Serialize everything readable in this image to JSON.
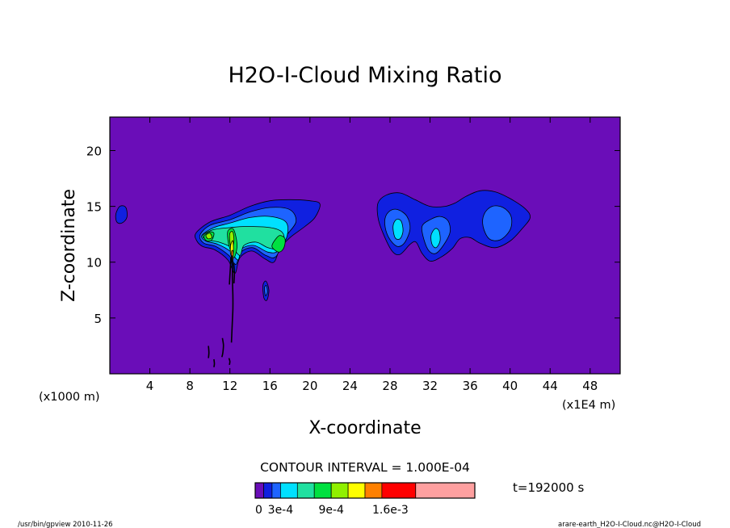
{
  "chart_data": {
    "type": "contour",
    "title": "H2O-I-Cloud Mixing Ratio",
    "xlabel": "X-coordinate",
    "ylabel": "Z-coordinate",
    "x_unit_left": "(x1000 m)",
    "x_unit_right": "(x1E4 m)",
    "xlim": [
      0,
      51
    ],
    "ylim": [
      0,
      23
    ],
    "x_ticks": [
      4,
      8,
      12,
      16,
      20,
      24,
      28,
      32,
      36,
      40,
      44,
      48
    ],
    "y_ticks": [
      5,
      10,
      15,
      20
    ],
    "x_tick_labels": [
      "4",
      "8",
      "12",
      "16",
      "20",
      "24",
      "28",
      "32",
      "36",
      "40",
      "44",
      "48"
    ],
    "y_tick_labels": [
      "5",
      "10",
      "15",
      "20"
    ],
    "background_color": "#6A0DB8",
    "contour_interval_text": "CONTOUR INTERVAL = 1.000E-04",
    "time_text": "t=192000 s",
    "colorbar": {
      "colors": [
        "#6A0DB8",
        "#1020E0",
        "#1E64FF",
        "#00E0FF",
        "#20E0A0",
        "#00E040",
        "#90F000",
        "#FFFF00",
        "#FF8000",
        "#FF0000",
        "#FFA0A0"
      ],
      "weights": [
        1,
        1,
        1,
        2,
        2,
        2,
        2,
        2,
        2,
        4,
        7
      ],
      "labels": [
        "0",
        "3e-4",
        "9e-4",
        "1.6e-3"
      ],
      "label_values": [
        0,
        0.0003,
        0.0009,
        0.0016
      ]
    },
    "cloud_regions": [
      {
        "level": 1,
        "shape": [
          [
            0.6,
            14.3
          ],
          [
            1.0,
            15.0
          ],
          [
            1.6,
            14.9
          ],
          [
            1.7,
            14.0
          ],
          [
            1.2,
            13.5
          ],
          [
            0.7,
            13.6
          ]
        ]
      },
      {
        "level": 1,
        "shape": [
          [
            8.6,
            12.6
          ],
          [
            10.0,
            13.6
          ],
          [
            12.0,
            14.2
          ],
          [
            14.0,
            15.0
          ],
          [
            16.0,
            15.5
          ],
          [
            18.0,
            15.6
          ],
          [
            20.0,
            15.5
          ],
          [
            21.0,
            15.2
          ],
          [
            20.5,
            14.0
          ],
          [
            19.5,
            13.2
          ],
          [
            18.0,
            12.2
          ],
          [
            17.0,
            11.2
          ],
          [
            16.4,
            10.0
          ],
          [
            15.5,
            10.3
          ],
          [
            14.2,
            11.0
          ],
          [
            13.0,
            10.4
          ],
          [
            12.5,
            9.0
          ],
          [
            11.8,
            10.2
          ],
          [
            10.5,
            11.1
          ],
          [
            9.3,
            11.4
          ],
          [
            8.7,
            11.9
          ]
        ]
      },
      {
        "level": 2,
        "shape": [
          [
            9.0,
            12.4
          ],
          [
            10.0,
            13.3
          ],
          [
            12.0,
            13.8
          ],
          [
            14.0,
            14.5
          ],
          [
            16.0,
            14.9
          ],
          [
            18.0,
            14.7
          ],
          [
            18.6,
            13.6
          ],
          [
            17.5,
            12.2
          ],
          [
            16.6,
            10.5
          ],
          [
            15.6,
            10.6
          ],
          [
            14.3,
            11.3
          ],
          [
            13.1,
            10.9
          ],
          [
            12.6,
            9.8
          ],
          [
            11.9,
            10.6
          ],
          [
            10.6,
            11.4
          ],
          [
            9.4,
            11.7
          ]
        ]
      },
      {
        "level": 3,
        "shape": [
          [
            9.2,
            12.4
          ],
          [
            10.4,
            13.1
          ],
          [
            12.0,
            13.5
          ],
          [
            14.0,
            14.0
          ],
          [
            16.0,
            14.1
          ],
          [
            17.6,
            13.6
          ],
          [
            17.7,
            12.3
          ],
          [
            16.8,
            11.0
          ],
          [
            15.8,
            10.9
          ],
          [
            14.4,
            11.5
          ],
          [
            13.2,
            11.2
          ],
          [
            12.8,
            10.2
          ],
          [
            12.0,
            11.0
          ],
          [
            10.8,
            11.6
          ],
          [
            9.6,
            11.9
          ]
        ]
      },
      {
        "level": 4,
        "shape": [
          [
            9.3,
            12.4
          ],
          [
            10.3,
            12.9
          ],
          [
            12.0,
            13.1
          ],
          [
            13.6,
            13.2
          ],
          [
            16.0,
            13.1
          ],
          [
            17.2,
            12.7
          ],
          [
            17.4,
            11.9
          ],
          [
            16.8,
            11.2
          ],
          [
            15.8,
            11.3
          ],
          [
            14.6,
            11.8
          ],
          [
            13.4,
            11.5
          ],
          [
            13.0,
            10.6
          ],
          [
            12.2,
            11.3
          ],
          [
            10.9,
            11.8
          ],
          [
            9.7,
            12.0
          ]
        ]
      },
      {
        "level": 5,
        "shape": [
          [
            16.2,
            11.4
          ],
          [
            16.6,
            12.1
          ],
          [
            17.0,
            12.4
          ],
          [
            17.5,
            12.1
          ],
          [
            17.4,
            11.3
          ],
          [
            16.9,
            10.9
          ]
        ]
      },
      {
        "level": 5,
        "shape": [
          [
            9.4,
            12.3
          ],
          [
            9.9,
            12.7
          ],
          [
            10.4,
            12.6
          ],
          [
            10.2,
            12.0
          ],
          [
            9.7,
            11.9
          ]
        ]
      },
      {
        "level": 5,
        "shape": [
          [
            11.8,
            12.8
          ],
          [
            12.3,
            13.0
          ],
          [
            12.6,
            12.3
          ],
          [
            12.7,
            11.3
          ],
          [
            12.4,
            10.4
          ],
          [
            12.0,
            11.2
          ],
          [
            11.8,
            12.0
          ]
        ]
      },
      {
        "level": 6,
        "shape": [
          [
            9.6,
            12.4
          ],
          [
            10.0,
            12.6
          ],
          [
            10.2,
            12.2
          ],
          [
            9.8,
            12.1
          ]
        ]
      },
      {
        "level": 6,
        "shape": [
          [
            12.0,
            12.6
          ],
          [
            12.3,
            12.7
          ],
          [
            12.4,
            11.9
          ],
          [
            12.2,
            11.2
          ],
          [
            12.0,
            11.8
          ]
        ]
      },
      {
        "level": 7,
        "shape": [
          [
            12.1,
            11.6
          ],
          [
            12.3,
            11.9
          ],
          [
            12.35,
            10.9
          ],
          [
            12.2,
            10.4
          ],
          [
            12.05,
            10.9
          ]
        ]
      },
      {
        "level": 8,
        "shape": [
          [
            12.15,
            10.9
          ],
          [
            12.3,
            11.0
          ],
          [
            12.32,
            10.2
          ],
          [
            12.2,
            9.9
          ]
        ]
      },
      {
        "level": 1,
        "shape": [
          [
            15.3,
            7.9
          ],
          [
            15.6,
            8.3
          ],
          [
            15.9,
            7.5
          ],
          [
            15.7,
            6.6
          ],
          [
            15.4,
            6.8
          ]
        ]
      },
      {
        "level": 2,
        "shape": [
          [
            15.45,
            7.7
          ],
          [
            15.65,
            7.9
          ],
          [
            15.75,
            7.3
          ],
          [
            15.55,
            7.0
          ]
        ]
      },
      {
        "level": 1,
        "shape": [
          [
            26.8,
            15.3
          ],
          [
            27.6,
            16.0
          ],
          [
            29.0,
            16.2
          ],
          [
            30.5,
            15.6
          ],
          [
            32.0,
            15.0
          ],
          [
            33.5,
            15.0
          ],
          [
            34.5,
            15.3
          ],
          [
            35.6,
            15.9
          ],
          [
            37.0,
            16.4
          ],
          [
            38.5,
            16.3
          ],
          [
            40.0,
            15.7
          ],
          [
            41.5,
            14.8
          ],
          [
            42.0,
            14.0
          ],
          [
            41.2,
            13.0
          ],
          [
            40.0,
            11.9
          ],
          [
            38.5,
            11.3
          ],
          [
            37.0,
            11.7
          ],
          [
            36.0,
            12.2
          ],
          [
            35.0,
            12.1
          ],
          [
            34.2,
            11.2
          ],
          [
            33.0,
            10.4
          ],
          [
            32.0,
            10.1
          ],
          [
            31.2,
            10.8
          ],
          [
            30.6,
            11.8
          ],
          [
            30.0,
            11.6
          ],
          [
            29.0,
            10.7
          ],
          [
            28.2,
            11.0
          ],
          [
            27.3,
            12.6
          ],
          [
            26.8,
            14.0
          ]
        ]
      },
      {
        "level": 2,
        "shape": [
          [
            27.5,
            13.9
          ],
          [
            28.0,
            14.6
          ],
          [
            28.8,
            14.7
          ],
          [
            29.7,
            14.1
          ],
          [
            30.0,
            13.0
          ],
          [
            29.5,
            11.8
          ],
          [
            28.8,
            11.4
          ],
          [
            28.1,
            11.9
          ],
          [
            27.6,
            12.8
          ]
        ]
      },
      {
        "level": 2,
        "shape": [
          [
            31.2,
            13.2
          ],
          [
            32.0,
            13.8
          ],
          [
            33.0,
            14.1
          ],
          [
            33.8,
            13.7
          ],
          [
            34.0,
            12.7
          ],
          [
            33.4,
            11.6
          ],
          [
            32.6,
            10.8
          ],
          [
            31.9,
            11.0
          ],
          [
            31.4,
            12.0
          ]
        ]
      },
      {
        "level": 2,
        "shape": [
          [
            37.4,
            14.3
          ],
          [
            38.2,
            15.0
          ],
          [
            39.3,
            14.9
          ],
          [
            40.1,
            14.1
          ],
          [
            40.0,
            12.9
          ],
          [
            39.0,
            12.0
          ],
          [
            37.9,
            12.1
          ],
          [
            37.3,
            13.2
          ]
        ]
      },
      {
        "level": 3,
        "shape": [
          [
            28.3,
            13.2
          ],
          [
            28.6,
            13.8
          ],
          [
            29.1,
            13.7
          ],
          [
            29.3,
            12.8
          ],
          [
            29.0,
            12.1
          ],
          [
            28.5,
            12.2
          ]
        ]
      },
      {
        "level": 3,
        "shape": [
          [
            32.1,
            12.4
          ],
          [
            32.5,
            13.0
          ],
          [
            32.9,
            12.8
          ],
          [
            33.0,
            11.9
          ],
          [
            32.6,
            11.3
          ],
          [
            32.2,
            11.6
          ]
        ]
      }
    ],
    "contour_lines": [
      {
        "level": 9,
        "points": [
          [
            12.2,
            10.6
          ],
          [
            12.25,
            9.5
          ],
          [
            12.25,
            8.5
          ],
          [
            12.3,
            7.0
          ],
          [
            12.3,
            5.8
          ],
          [
            12.25,
            4.8
          ],
          [
            12.2,
            3.8
          ],
          [
            12.15,
            2.8
          ]
        ]
      },
      {
        "level": 9,
        "points": [
          [
            12.1,
            10.4
          ],
          [
            12.05,
            9.5
          ],
          [
            12.0,
            8.8
          ],
          [
            11.95,
            8.0
          ]
        ]
      },
      {
        "level": 9,
        "points": [
          [
            12.38,
            9.9
          ],
          [
            12.45,
            9.0
          ],
          [
            12.4,
            8.1
          ]
        ]
      },
      {
        "level": 9,
        "points": [
          [
            11.25,
            3.2
          ],
          [
            11.35,
            2.6
          ],
          [
            11.3,
            1.9
          ],
          [
            11.2,
            1.5
          ]
        ]
      },
      {
        "level": 9,
        "points": [
          [
            9.85,
            2.5
          ],
          [
            9.9,
            1.9
          ],
          [
            9.85,
            1.4
          ]
        ]
      },
      {
        "level": 9,
        "points": [
          [
            10.4,
            1.3
          ],
          [
            10.45,
            0.9
          ],
          [
            10.4,
            0.6
          ]
        ]
      },
      {
        "level": 9,
        "points": [
          [
            11.9,
            1.4
          ],
          [
            12.0,
            1.1
          ],
          [
            11.95,
            0.8
          ]
        ]
      }
    ]
  },
  "footer": {
    "left": "/usr/bin/gpview  2010-11-26",
    "right": "arare-earth_H2O-I-Cloud.nc@H2O-I-Cloud"
  }
}
